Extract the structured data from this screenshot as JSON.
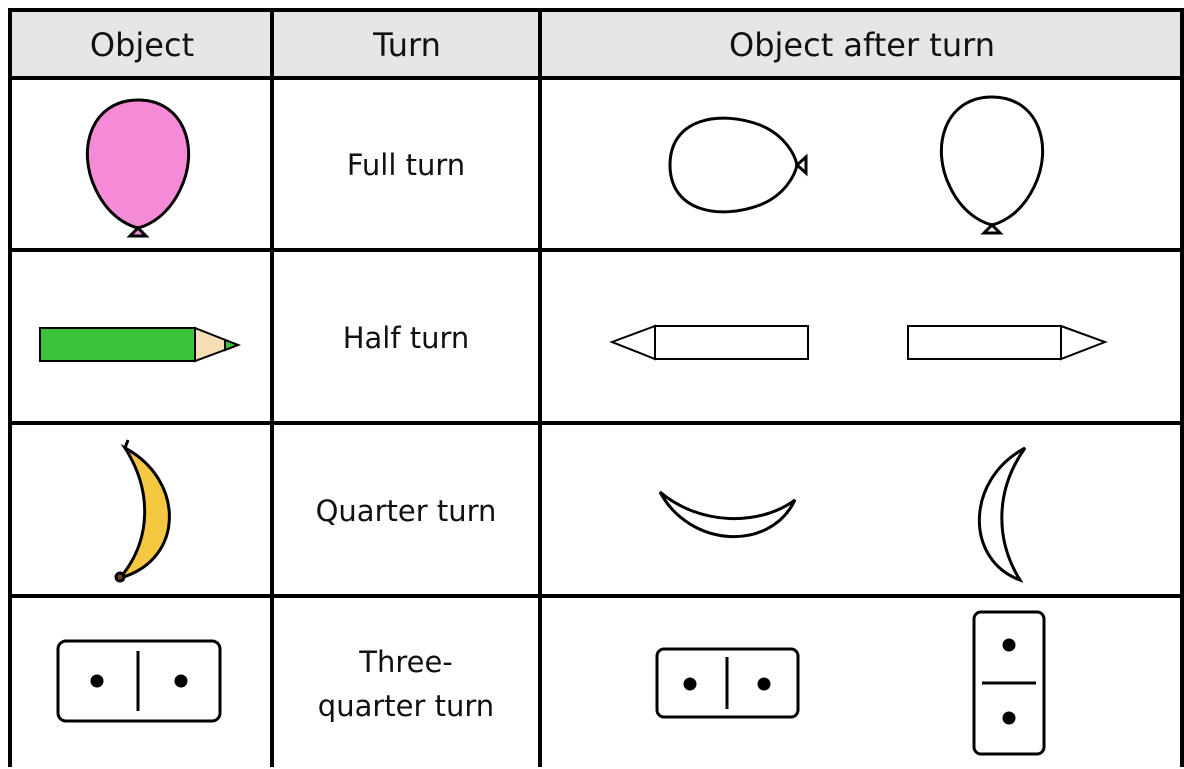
{
  "table": {
    "header": [
      "Object",
      "Turn",
      "Object after turn"
    ],
    "rows": [
      [
        "Full turn"
      ],
      [
        "Half turn"
      ],
      [
        "Quarter turn"
      ],
      [
        "Three-quarter turn"
      ]
    ]
  }
}
